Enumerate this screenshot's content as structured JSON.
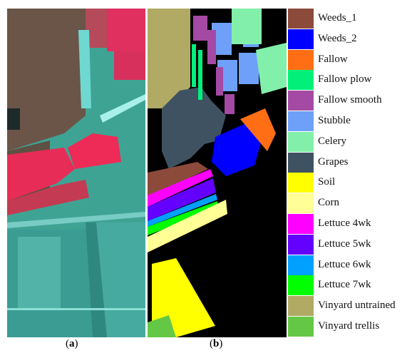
{
  "captions": {
    "a": "a",
    "b": "b"
  },
  "legend": [
    {
      "label": "Weeds_1",
      "color": "#8B4A3A"
    },
    {
      "label": "Weeds_2",
      "color": "#0000FF"
    },
    {
      "label": "Fallow",
      "color": "#FF6E14"
    },
    {
      "label": "Fallow plow",
      "color": "#00F07A"
    },
    {
      "label": "Fallow smooth",
      "color": "#A44AA4"
    },
    {
      "label": "Stubble",
      "color": "#6EA0FA"
    },
    {
      "label": "Celery",
      "color": "#82F0AA"
    },
    {
      "label": "Grapes",
      "color": "#3E5262"
    },
    {
      "label": "Soil",
      "color": "#FFFF00"
    },
    {
      "label": "Corn",
      "color": "#FFFF96"
    },
    {
      "label": "Lettuce 4wk",
      "color": "#FF00FF"
    },
    {
      "label": "Lettuce 5wk",
      "color": "#6400FF"
    },
    {
      "label": "Lettuce 6wk",
      "color": "#00A0FF"
    },
    {
      "label": "Lettuce 7wk",
      "color": "#00FF00"
    },
    {
      "label": "Vinyard untrained",
      "color": "#B0AA64"
    },
    {
      "label": "Vinyard trellis",
      "color": "#64C846"
    }
  ]
}
